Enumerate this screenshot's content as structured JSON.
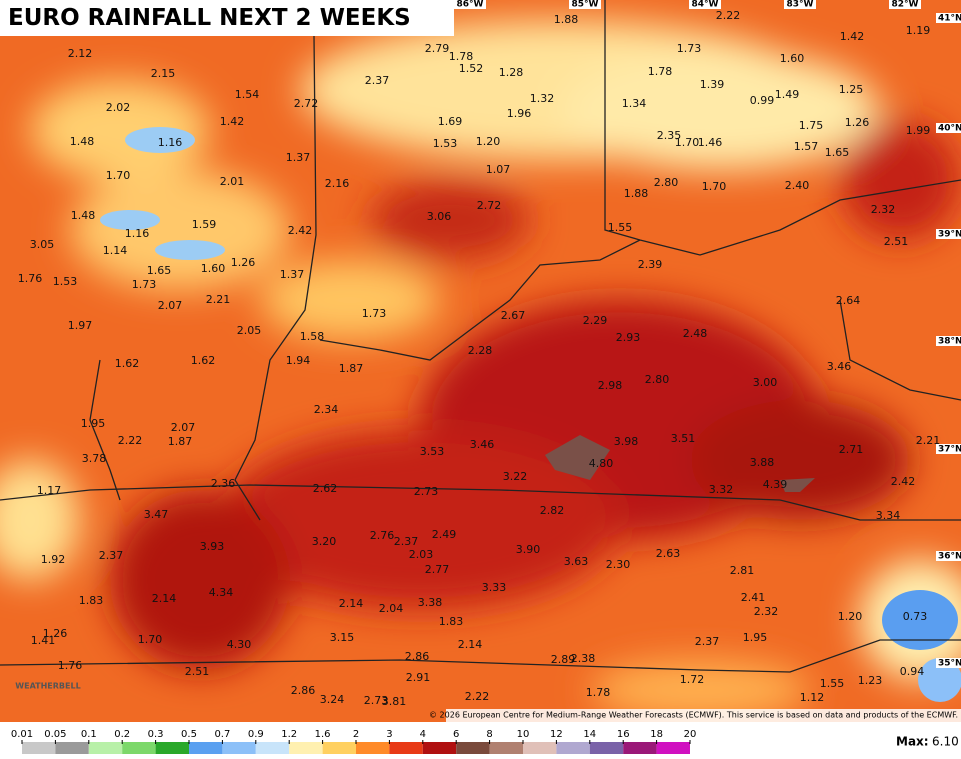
{
  "header": {
    "title": "EURO RAINFALL NEXT 2 WEEKS"
  },
  "longitudes": [
    "86°W",
    "85°W",
    "84°W",
    "83°W",
    "82°W"
  ],
  "latitudes": [
    "41°N",
    "40°N",
    "39°N",
    "38°N",
    "37°N",
    "36°N",
    "35°N"
  ],
  "map_labels": [
    "2.12",
    "2.15",
    "2.02",
    "1.54",
    "1.42",
    "1.48",
    "1.16",
    "1.70",
    "2.01",
    "1.37",
    "2.72",
    "2.37",
    "2.79",
    "1.78",
    "1.52",
    "1.28",
    "1.32",
    "1.96",
    "1.69",
    "1.53",
    "1.20",
    "1.07",
    "1.88",
    "2.22",
    "1.73",
    "1.78",
    "1.34",
    "1.39",
    "0.99",
    "1.49",
    "1.60",
    "1.42",
    "1.19",
    "1.25",
    "1.75",
    "1.26",
    "1.99",
    "1.57",
    "1.65",
    "2.35",
    "1.70",
    "1.46",
    "1.88",
    "2.80",
    "1.70",
    "2.40",
    "2.32",
    "2.51",
    "2.16",
    "3.06",
    "2.72",
    "2.42",
    "1.48",
    "1.16",
    "1.14",
    "1.59",
    "3.05",
    "1.65",
    "1.60",
    "1.26",
    "1.37",
    "1.73",
    "1.76",
    "1.53",
    "2.07",
    "2.21",
    "1.73",
    "1.55",
    "2.39",
    "2.64",
    "2.67",
    "2.29",
    "2.93",
    "2.48",
    "1.97",
    "2.05",
    "1.58",
    "1.94",
    "1.87",
    "2.28",
    "2.98",
    "2.80",
    "3.00",
    "3.46",
    "1.62",
    "1.62",
    "2.34",
    "1.95",
    "2.07",
    "1.87",
    "2.22",
    "3.53",
    "3.46",
    "3.98",
    "3.51",
    "3.22",
    "4.80",
    "3.88",
    "2.71",
    "2.21",
    "3.78",
    "1.17",
    "2.36",
    "2.62",
    "2.73",
    "3.32",
    "4.39",
    "2.42",
    "3.47",
    "2.82",
    "3.34",
    "3.93",
    "3.20",
    "2.76",
    "2.37",
    "2.49",
    "2.03",
    "3.90",
    "3.63",
    "2.30",
    "2.63",
    "1.92",
    "2.37",
    "2.77",
    "3.33",
    "2.81",
    "1.83",
    "2.14",
    "4.34",
    "2.14",
    "2.04",
    "3.38",
    "2.41",
    "2.32",
    "1.20",
    "0.73",
    "1.26",
    "1.41",
    "1.70",
    "4.30",
    "3.15",
    "1.83",
    "2.14",
    "1.95",
    "2.37",
    "1.76",
    "2.51",
    "2.86",
    "2.89",
    "2.38",
    "0.94",
    "2.91",
    "1.72",
    "1.55",
    "1.23",
    "2.86",
    "3.24",
    "2.73",
    "3.81",
    "2.22",
    "1.78",
    "1.12"
  ],
  "logo": "WEATHERBELL",
  "copyright": "© 2026 European Centre for Medium-Range Weather Forecasts (ECMWF). This service is based on data and products of the ECMWF.",
  "legend": {
    "ticks": [
      "0.01",
      "0.05",
      "0.1",
      "0.2",
      "0.3",
      "0.5",
      "0.7",
      "0.9",
      "1.2",
      "1.6",
      "2",
      "3",
      "4",
      "6",
      "8",
      "10",
      "12",
      "14",
      "16",
      "18",
      "20"
    ],
    "colors": [
      "#c8c8c8",
      "#9a9a9a",
      "#b8f0a8",
      "#7cd86a",
      "#2aa82a",
      "#5aa0f0",
      "#8cc0f8",
      "#c8e4fa",
      "#fff0b0",
      "#ffd060",
      "#ff8a28",
      "#e83a16",
      "#b01010",
      "#7a4a3c",
      "#b08070",
      "#e0c0b8",
      "#b0a8d0",
      "#7a62a8",
      "#9a1878",
      "#d010c0"
    ],
    "max_label": "Max:",
    "max_value": "6.10"
  }
}
